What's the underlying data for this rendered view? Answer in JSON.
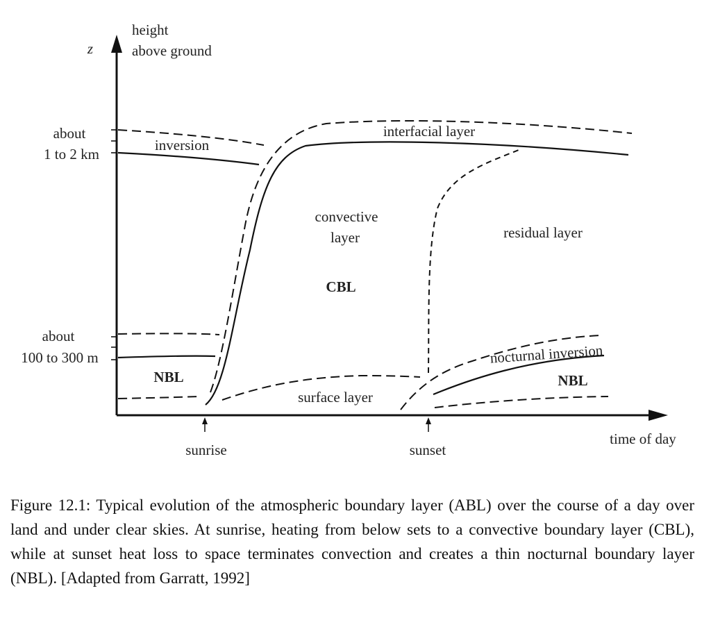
{
  "figure": {
    "axis": {
      "z_symbol": "z",
      "y_label_line1": "height",
      "y_label_line2": "above ground",
      "x_label": "time of day"
    },
    "levels": {
      "high_line1": "about",
      "high_line2": "1 to 2 km",
      "low_line1": "about",
      "low_line2": "100 to 300 m"
    },
    "regions": {
      "inversion": "inversion",
      "nbl_left": "NBL",
      "convective_line1": "convective",
      "convective_line2": "layer",
      "cbl": "CBL",
      "interfacial": "interfacial layer",
      "residual": "residual layer",
      "surface": "surface layer",
      "nocturnal_inversion": "nocturnal inversion",
      "nbl_right": "NBL"
    },
    "markers": {
      "sunrise": "sunrise",
      "sunset": "sunset"
    }
  },
  "caption": "Figure 12.1: Typical evolution of the atmospheric boundary layer (ABL) over the course of a day over land and under clear skies. At sunrise, heating from below sets to a convective boundary layer (CBL), while at sunset heat loss to space terminates convection and creates a thin nocturnal boundary layer (NBL). [Adapted from Garratt, 1992]"
}
